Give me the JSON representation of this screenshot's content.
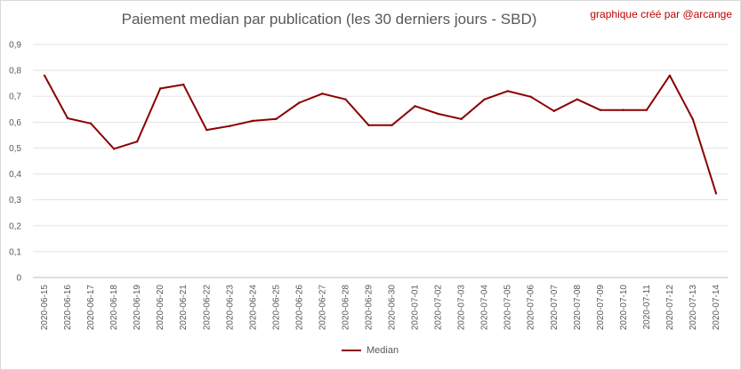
{
  "chart_data": {
    "type": "line",
    "title": "Paiement median par publication (les 30 derniers jours - SBD)",
    "annotation": "graphique créé par @arcange",
    "ylim": [
      0,
      0.9
    ],
    "yticks": [
      "0",
      "0,1",
      "0,2",
      "0,3",
      "0,4",
      "0,5",
      "0,6",
      "0,7",
      "0,8",
      "0,9"
    ],
    "grid": true,
    "legend_position": "bottom",
    "categories": [
      "2020-06-15",
      "2020-06-16",
      "2020-06-17",
      "2020-06-18",
      "2020-06-19",
      "2020-06-20",
      "2020-06-21",
      "2020-06-22",
      "2020-06-23",
      "2020-06-24",
      "2020-06-25",
      "2020-06-26",
      "2020-06-27",
      "2020-06-28",
      "2020-06-29",
      "2020-06-30",
      "2020-07-01",
      "2020-07-02",
      "2020-07-03",
      "2020-07-04",
      "2020-07-05",
      "2020-07-06",
      "2020-07-07",
      "2020-07-08",
      "2020-07-09",
      "2020-07-10",
      "2020-07-11",
      "2020-07-12",
      "2020-07-13",
      "2020-07-14"
    ],
    "series": [
      {
        "name": "Median",
        "color": "#8b0000",
        "values": [
          0.78,
          0.615,
          0.595,
          0.497,
          0.525,
          0.73,
          0.745,
          0.57,
          0.585,
          0.605,
          0.612,
          0.675,
          0.71,
          0.688,
          0.588,
          0.588,
          0.662,
          0.632,
          0.612,
          0.688,
          0.72,
          0.698,
          0.643,
          0.688,
          0.647,
          0.647,
          0.647,
          0.78,
          0.61,
          0.325
        ]
      }
    ]
  }
}
